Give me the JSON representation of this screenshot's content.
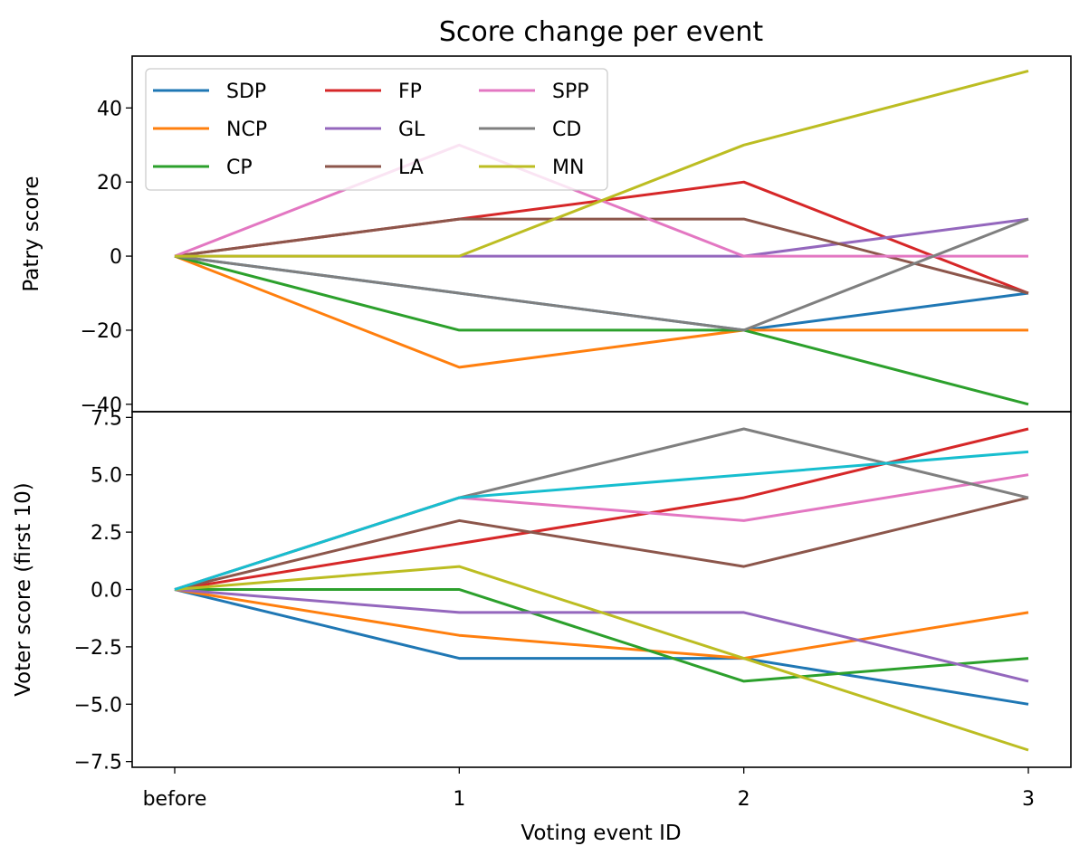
{
  "chart_data": {
    "type": "line",
    "title": "Score change per event",
    "xlabel": "Voting event ID",
    "categories": [
      "before",
      "1",
      "2",
      "3"
    ],
    "legend_placement": "upper-left",
    "panels": [
      {
        "ylabel": "Patry score",
        "ylim": [
          -42,
          54
        ],
        "yticks": [
          40,
          20,
          0,
          -20,
          -40
        ],
        "ytick_labels": [
          "40",
          "20",
          "0",
          "−20",
          "−40"
        ],
        "series": [
          {
            "name": "SDP",
            "color": "#1f77b4",
            "values": [
              0,
              -10,
              -20,
              -10
            ]
          },
          {
            "name": "NCP",
            "color": "#ff7f0e",
            "values": [
              0,
              -30,
              -20,
              -20
            ]
          },
          {
            "name": "CP",
            "color": "#2ca02c",
            "values": [
              0,
              -20,
              -20,
              -40
            ]
          },
          {
            "name": "FP",
            "color": "#d62728",
            "values": [
              0,
              10,
              20,
              -10
            ]
          },
          {
            "name": "GL",
            "color": "#9467bd",
            "values": [
              0,
              0,
              0,
              10
            ]
          },
          {
            "name": "LA",
            "color": "#8c564b",
            "values": [
              0,
              10,
              10,
              -10
            ]
          },
          {
            "name": "SPP",
            "color": "#e377c2",
            "values": [
              0,
              30,
              0,
              0
            ]
          },
          {
            "name": "CD",
            "color": "#7f7f7f",
            "values": [
              0,
              -10,
              -20,
              10
            ]
          },
          {
            "name": "MN",
            "color": "#bcbd22",
            "values": [
              0,
              0,
              30,
              50
            ]
          }
        ]
      },
      {
        "ylabel": "Voter score (first 10)",
        "ylim": [
          -7.75,
          7.75
        ],
        "yticks": [
          7.5,
          5.0,
          2.5,
          0.0,
          -2.5,
          -5.0,
          -7.5
        ],
        "ytick_labels": [
          "7.5",
          "5.0",
          "2.5",
          "0.0",
          "−2.5",
          "−5.0",
          "−7.5"
        ],
        "series": [
          {
            "color": "#1f77b4",
            "values": [
              0,
              -3,
              -3,
              -5
            ]
          },
          {
            "color": "#ff7f0e",
            "values": [
              0,
              -2,
              -3,
              -1
            ]
          },
          {
            "color": "#2ca02c",
            "values": [
              0,
              0,
              -4,
              -3
            ]
          },
          {
            "color": "#d62728",
            "values": [
              0,
              2,
              4,
              7
            ]
          },
          {
            "color": "#9467bd",
            "values": [
              0,
              -1,
              -1,
              -4
            ]
          },
          {
            "color": "#8c564b",
            "values": [
              0,
              3,
              1,
              4
            ]
          },
          {
            "color": "#e377c2",
            "values": [
              0,
              4,
              3,
              5
            ]
          },
          {
            "color": "#7f7f7f",
            "values": [
              0,
              4,
              7,
              4
            ]
          },
          {
            "color": "#bcbd22",
            "values": [
              0,
              1,
              -3,
              -7
            ]
          },
          {
            "color": "#17becf",
            "values": [
              0,
              4,
              5,
              6
            ]
          }
        ]
      }
    ]
  }
}
